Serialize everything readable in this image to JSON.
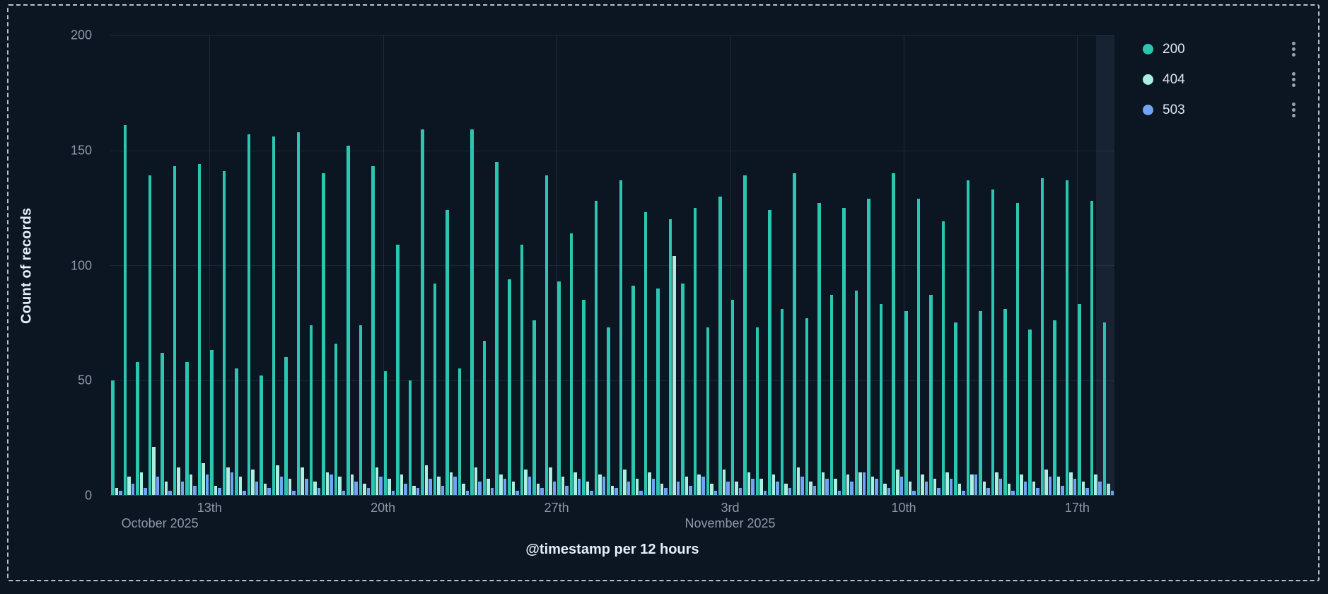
{
  "chart_data": {
    "type": "bar",
    "title": "",
    "xlabel": "@timestamp per 12 hours",
    "ylabel": "Count of records",
    "ylim": [
      0,
      200
    ],
    "y_ticks": [
      0,
      50,
      100,
      150,
      200
    ],
    "x_unit": "12 hours",
    "grid": true,
    "legend_position": "top-right",
    "x_ticks": [
      {
        "index": 8,
        "label": "13th"
      },
      {
        "index": 22,
        "label": "20th"
      },
      {
        "index": 36,
        "label": "27th"
      },
      {
        "index": 50,
        "label": "3rd"
      },
      {
        "index": 64,
        "label": "10th"
      },
      {
        "index": 78,
        "label": "17th"
      }
    ],
    "month_labels": [
      {
        "index": 4,
        "label": "October 2025"
      },
      {
        "index": 50,
        "label": "November 2025"
      }
    ],
    "series": [
      {
        "name": "200",
        "color": "#2bc6b0",
        "values": [
          50,
          161,
          58,
          139,
          62,
          143,
          58,
          144,
          63,
          141,
          55,
          157,
          52,
          156,
          60,
          158,
          74,
          140,
          66,
          152,
          74,
          143,
          54,
          109,
          50,
          159,
          92,
          124,
          55,
          159,
          67,
          145,
          94,
          109,
          76,
          139,
          93,
          114,
          85,
          128,
          73,
          137,
          91,
          123,
          90,
          120,
          92,
          125,
          73,
          130,
          85,
          139,
          73,
          124,
          81,
          140,
          77,
          127,
          87,
          125,
          89,
          129,
          83,
          140,
          80,
          129,
          87,
          119,
          75,
          137,
          80,
          133,
          81,
          127,
          72,
          138,
          76,
          137,
          83,
          128,
          75
        ]
      },
      {
        "name": "404",
        "color": "#a9f0e1",
        "values": [
          3,
          8,
          10,
          21,
          6,
          12,
          9,
          14,
          4,
          12,
          8,
          11,
          5,
          13,
          7,
          12,
          6,
          10,
          8,
          9,
          5,
          12,
          7,
          9,
          4,
          13,
          8,
          10,
          5,
          12,
          7,
          9,
          6,
          11,
          5,
          12,
          8,
          10,
          6,
          9,
          4,
          11,
          7,
          10,
          5,
          104,
          8,
          9,
          5,
          11,
          6,
          10,
          7,
          9,
          5,
          12,
          6,
          10,
          7,
          9,
          10,
          8,
          5,
          11,
          6,
          9,
          7,
          10,
          5,
          9,
          6,
          10,
          5,
          9,
          6,
          11,
          8,
          10,
          6,
          9,
          5
        ]
      },
      {
        "name": "503",
        "color": "#70a4f5",
        "values": [
          2,
          5,
          3,
          8,
          2,
          6,
          4,
          9,
          3,
          10,
          2,
          6,
          3,
          8,
          2,
          7,
          3,
          9,
          2,
          6,
          3,
          8,
          2,
          5,
          3,
          7,
          4,
          8,
          2,
          6,
          3,
          7,
          2,
          8,
          3,
          6,
          4,
          7,
          2,
          8,
          3,
          6,
          2,
          7,
          3,
          6,
          4,
          8,
          2,
          6,
          3,
          7,
          2,
          6,
          3,
          8,
          4,
          7,
          2,
          6,
          10,
          7,
          3,
          8,
          2,
          6,
          3,
          7,
          2,
          9,
          3,
          7,
          2,
          6,
          3,
          8,
          4,
          7,
          3,
          6,
          2
        ]
      }
    ],
    "theme": {
      "background": "#0c1522",
      "grid_line": "#263650",
      "tick_text": "#8e98ab",
      "axis_title_text": "#e6edf7",
      "frame_dash": "#d6dfeb"
    }
  }
}
